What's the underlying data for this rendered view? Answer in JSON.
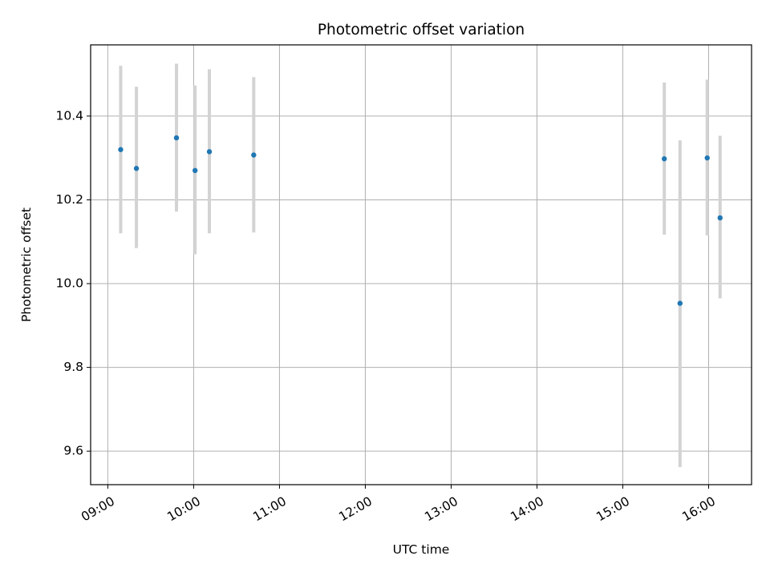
{
  "chart_data": {
    "type": "scatter",
    "title": "Photometric offset variation",
    "xlabel": "UTC time",
    "ylabel": "Photometric offset",
    "x_axis_type": "time",
    "xlim": [
      "08:48",
      "16:30"
    ],
    "ylim": [
      9.52,
      10.57
    ],
    "x_ticks": [
      "09:00",
      "10:00",
      "11:00",
      "12:00",
      "13:00",
      "14:00",
      "15:00",
      "16:00"
    ],
    "y_ticks": [
      9.6,
      9.8,
      10.0,
      10.2,
      10.4
    ],
    "y_tick_labels": [
      "9.6",
      "9.8",
      "10.0",
      "10.2",
      "10.4"
    ],
    "grid": true,
    "marker_color": "#1f77b4",
    "errorbar_color": "#d3d3d3",
    "series": [
      {
        "points": [
          {
            "x": "09:09",
            "y": 10.32,
            "yerr_low": 10.12,
            "yerr_high": 10.52
          },
          {
            "x": "09:20",
            "y": 10.275,
            "yerr_low": 10.085,
            "yerr_high": 10.47
          },
          {
            "x": "09:48",
            "y": 10.348,
            "yerr_low": 10.172,
            "yerr_high": 10.525
          },
          {
            "x": "10:01",
            "y": 10.27,
            "yerr_low": 10.07,
            "yerr_high": 10.473
          },
          {
            "x": "10:11",
            "y": 10.315,
            "yerr_low": 10.12,
            "yerr_high": 10.512
          },
          {
            "x": "10:42",
            "y": 10.307,
            "yerr_low": 10.122,
            "yerr_high": 10.493
          },
          {
            "x": "15:29",
            "y": 10.298,
            "yerr_low": 10.117,
            "yerr_high": 10.48
          },
          {
            "x": "15:40",
            "y": 9.953,
            "yerr_low": 9.562,
            "yerr_high": 10.342
          },
          {
            "x": "15:59",
            "y": 10.3,
            "yerr_low": 10.115,
            "yerr_high": 10.487
          },
          {
            "x": "16:08",
            "y": 10.157,
            "yerr_low": 9.965,
            "yerr_high": 10.353
          }
        ]
      }
    ]
  }
}
